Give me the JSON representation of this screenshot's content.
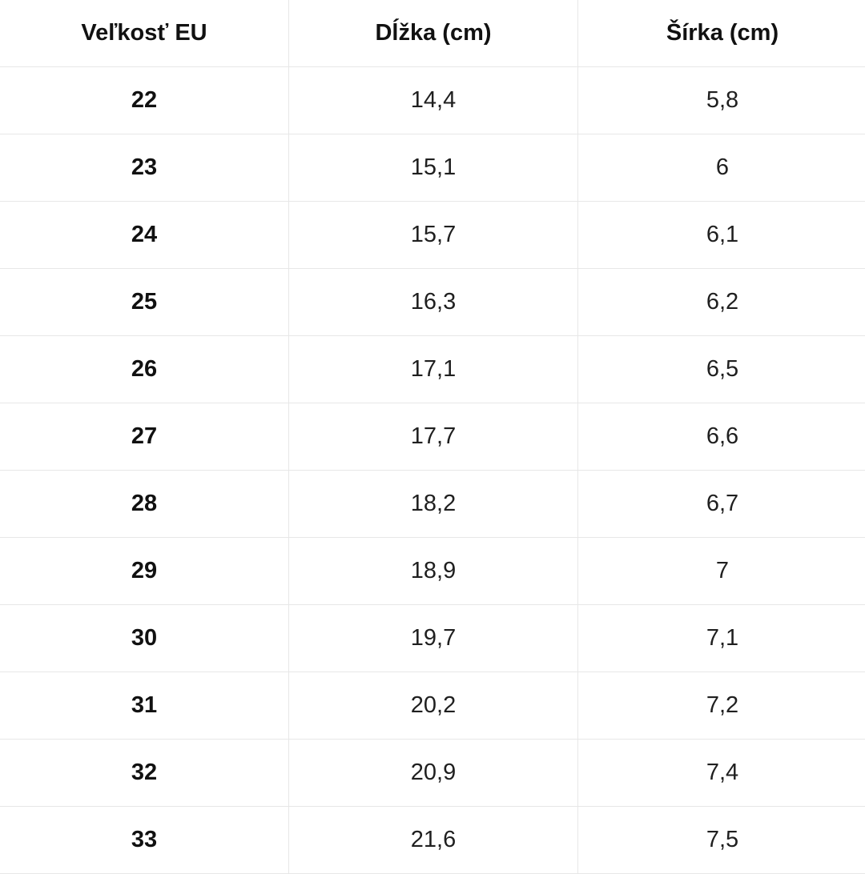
{
  "colors": {
    "background": "#ffffff",
    "text": "#1a1a1a",
    "border": "#e7e7e7"
  },
  "table": {
    "columns": [
      {
        "label": "Veľkosť EU"
      },
      {
        "label": "Dĺžka (cm)"
      },
      {
        "label": "Šírka (cm)"
      }
    ],
    "rows": [
      {
        "size": "22",
        "length": "14,4",
        "width": "5,8"
      },
      {
        "size": "23",
        "length": "15,1",
        "width": "6"
      },
      {
        "size": "24",
        "length": "15,7",
        "width": "6,1"
      },
      {
        "size": "25",
        "length": "16,3",
        "width": "6,2"
      },
      {
        "size": "26",
        "length": "17,1",
        "width": "6,5"
      },
      {
        "size": "27",
        "length": "17,7",
        "width": "6,6"
      },
      {
        "size": "28",
        "length": "18,2",
        "width": "6,7"
      },
      {
        "size": "29",
        "length": "18,9",
        "width": "7"
      },
      {
        "size": "30",
        "length": "19,7",
        "width": "7,1"
      },
      {
        "size": "31",
        "length": "20,2",
        "width": "7,2"
      },
      {
        "size": "32",
        "length": "20,9",
        "width": "7,4"
      },
      {
        "size": "33",
        "length": "21,6",
        "width": "7,5"
      }
    ]
  }
}
